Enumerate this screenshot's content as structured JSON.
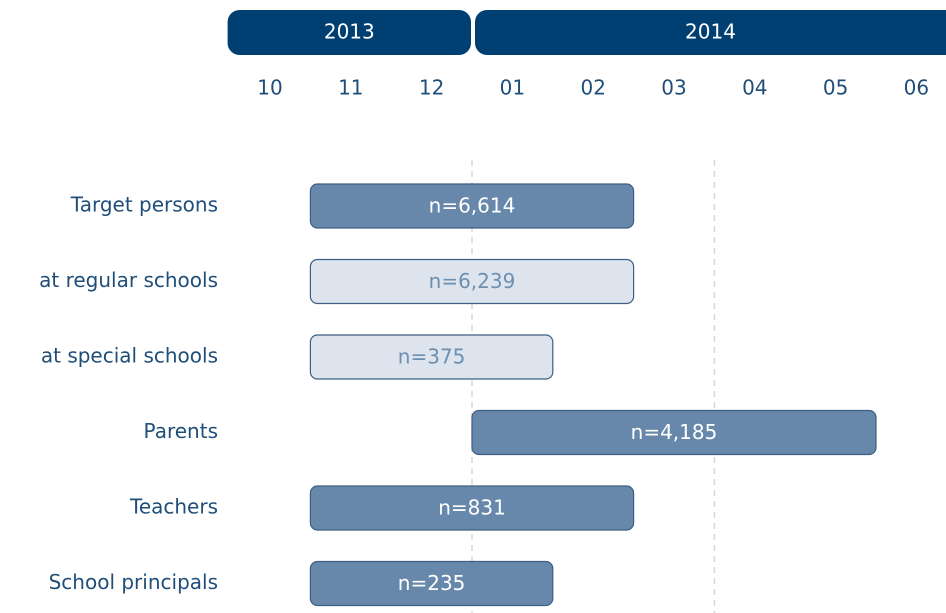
{
  "chart_data": {
    "type": "gantt",
    "years": [
      {
        "label": "2013",
        "from": "10",
        "to": "12"
      },
      {
        "label": "2014",
        "from": "01",
        "to": "06"
      }
    ],
    "categories": [
      "10",
      "11",
      "12",
      "01",
      "02",
      "03",
      "04",
      "05",
      "06"
    ],
    "dividers": [
      "01",
      "04"
    ],
    "tasks": [
      {
        "name": "Target persons",
        "start": "11",
        "end": "02",
        "n": 6614,
        "label": "n=6,614",
        "style": "dark"
      },
      {
        "name": "at regular schools",
        "start": "11",
        "end": "02",
        "n": 6239,
        "label": "n=6,239",
        "style": "light"
      },
      {
        "name": "at special schools",
        "start": "11",
        "end": "01",
        "n": 375,
        "label": "n=375",
        "style": "light"
      },
      {
        "name": "Parents",
        "start": "01",
        "end": "05",
        "n": 4185,
        "label": "n=4,185",
        "style": "dark"
      },
      {
        "name": "Teachers",
        "start": "11",
        "end": "02",
        "n": 831,
        "label": "n=831",
        "style": "dark"
      },
      {
        "name": "School principals",
        "start": "11",
        "end": "01",
        "n": 235,
        "label": "n=235",
        "style": "dark"
      }
    ],
    "colors": {
      "header": "#003f72",
      "dark": "#6788aa",
      "light": "#dde4ed",
      "border": "#3d5f85"
    }
  }
}
